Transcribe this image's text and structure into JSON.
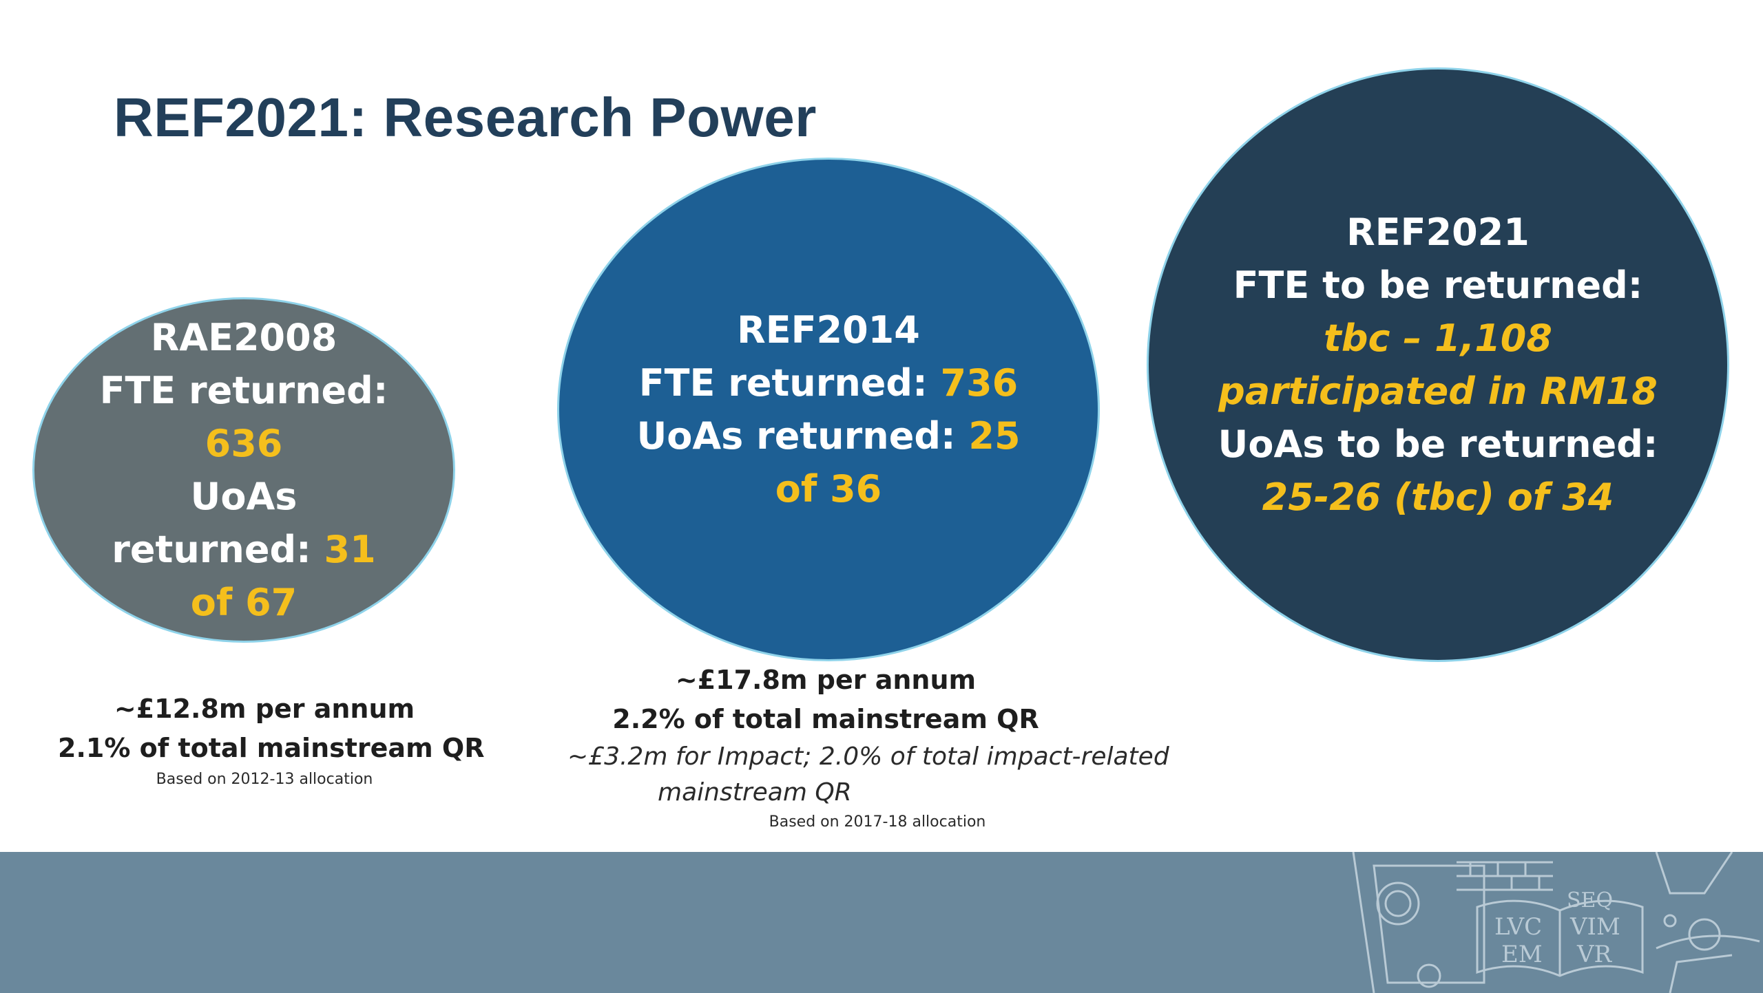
{
  "slide": {
    "title": "REF2021: Research Power"
  },
  "circles": {
    "rae2008": {
      "heading": "RAE2008",
      "fte_label": "FTE returned:",
      "fte_value": "636",
      "uoas_label_1": "UoAs",
      "uoas_label_2": "returned: ",
      "uoas_value": "31",
      "uoas_of": "of 67"
    },
    "ref2014": {
      "heading": "REF2014",
      "fte_label": "FTE returned: ",
      "fte_value": "736",
      "uoas_label": "UoAs returned: ",
      "uoas_value": "25",
      "uoas_of": "of 36"
    },
    "ref2021": {
      "heading": "REF2021",
      "fte_label": "FTE to be returned:",
      "fte_value_1": "tbc – 1,108",
      "fte_value_2": "participated in RM18",
      "uoas_label": "UoAs to be returned:",
      "uoas_value": "25-26 (tbc) of 34"
    }
  },
  "notes": {
    "rae2008": {
      "per_annum": "~£12.8m per annum",
      "share": "2.1% of total mainstream QR",
      "basis": "Based on 2012-13 allocation"
    },
    "ref2014": {
      "per_annum": "~£17.8m per annum",
      "share": "2.2% of total mainstream QR",
      "impact_1": "~£3.2m for Impact; 2.0% of total impact-related",
      "impact_2": "mainstream QR",
      "basis": "Based on 2017-18 allocation"
    }
  },
  "footer": {
    "crest_text_1": "LVC",
    "crest_text_2": "EM",
    "crest_text_3": "SEQ",
    "crest_text_4": "VIM",
    "crest_text_5": "VR",
    "colors": {
      "band": "#6a889c",
      "crest_line": "#b9cad5"
    }
  },
  "colors": {
    "title": "#223f5a",
    "highlight": "#f5bf1c",
    "circle_rae2008": "#636f73",
    "circle_ref2014": "#1d5f94",
    "circle_ref2021": "#243f55"
  }
}
